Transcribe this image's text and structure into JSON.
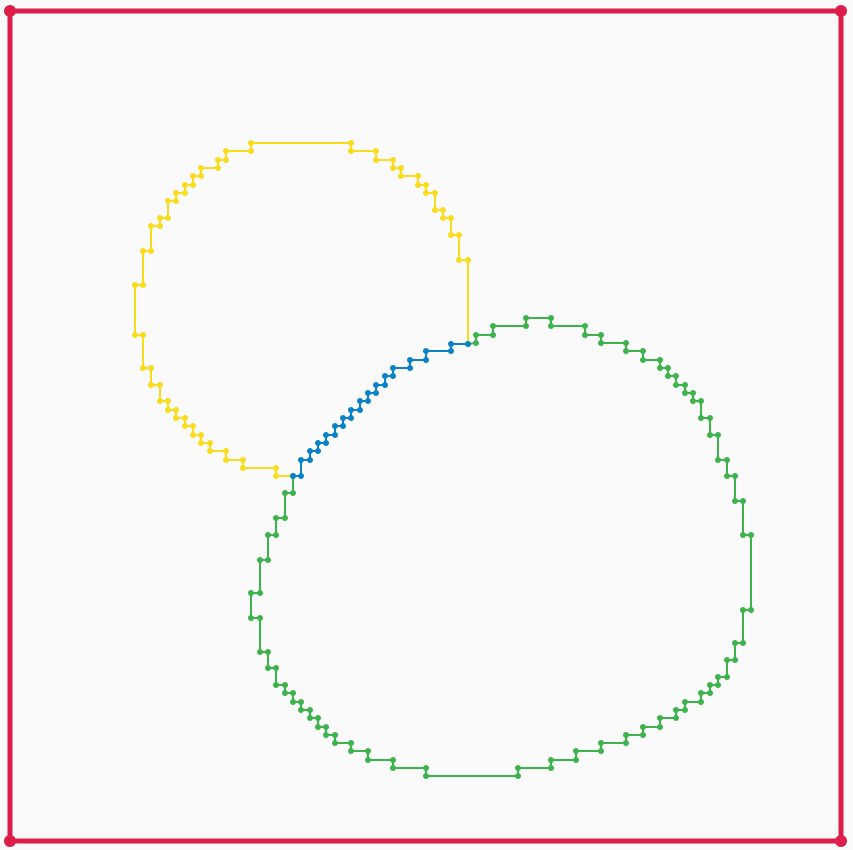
{
  "colors": {
    "background": "#fafafa",
    "frame": "#dc1e4a",
    "circle_a": "#fadc1e",
    "circle_b": "#3cb44b",
    "overlap": "#0a82c8"
  }
}
